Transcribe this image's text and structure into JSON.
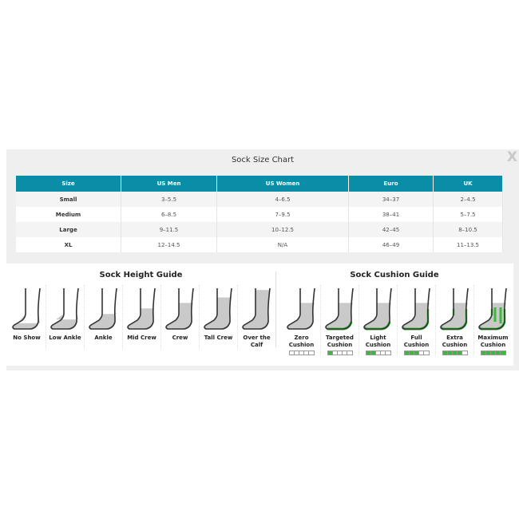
{
  "modal": {
    "title": "Sock Size Chart",
    "close_label": "X"
  },
  "size_table": {
    "headers": [
      "Size",
      "US Men",
      "US Women",
      "Euro",
      "UK"
    ],
    "rows": [
      [
        "Small",
        "3–5.5",
        "4–6.5",
        "34–37",
        "2–4.5"
      ],
      [
        "Medium",
        "6–8.5",
        "7–9.5",
        "38–41",
        "5–7.5"
      ],
      [
        "Large",
        "9–11.5",
        "10–12.5",
        "42–45",
        "8–10.5"
      ],
      [
        "XL",
        "12–14.5",
        "N/A",
        "46–49",
        "11–13.5"
      ]
    ]
  },
  "height_guide": {
    "title": "Sock Height Guide",
    "items": [
      {
        "label": "No Show",
        "height": 0.05
      },
      {
        "label": "Low Ankle",
        "height": 0.15
      },
      {
        "label": "Ankle",
        "height": 0.3
      },
      {
        "label": "Mid Crew",
        "height": 0.45
      },
      {
        "label": "Crew",
        "height": 0.6
      },
      {
        "label": "Tall Crew",
        "height": 0.75
      },
      {
        "label": "Over the Calf",
        "height": 0.95
      }
    ]
  },
  "cushion_guide": {
    "title": "Sock Cushion Guide",
    "items": [
      {
        "label": "Zero Cushion",
        "level": 0
      },
      {
        "label": "Targeted Cushion",
        "level": 1
      },
      {
        "label": "Light Cushion",
        "level": 2
      },
      {
        "label": "Full Cushion",
        "level": 3
      },
      {
        "label": "Extra Cushion",
        "level": 4
      },
      {
        "label": "Maximum Cushion",
        "level": 5
      }
    ],
    "accent": "#3db83a"
  },
  "colors": {
    "header": "#0a8ea8",
    "cushion": "#3db83a"
  }
}
